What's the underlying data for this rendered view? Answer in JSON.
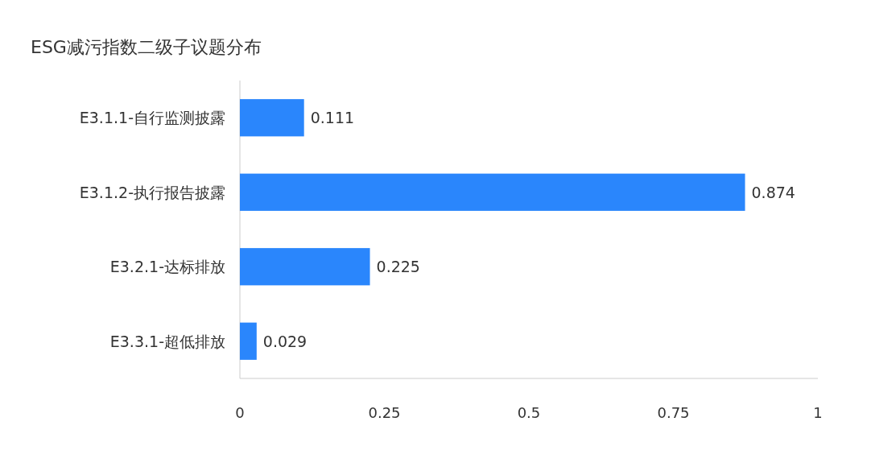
{
  "chart_data": {
    "type": "bar",
    "orientation": "horizontal",
    "title": "ESG减污指数二级子议题分布",
    "categories": [
      "E3.1.1-自行监测披露",
      "E3.1.2-执行报告披露",
      "E3.2.1-达标排放",
      "E3.3.1-超低排放"
    ],
    "values": [
      0.111,
      0.874,
      0.225,
      0.029
    ],
    "color": "#2a86fc",
    "xlim": [
      0,
      1
    ],
    "xticks": [
      0,
      0.25,
      0.5,
      0.75,
      1
    ],
    "data_labels": true
  }
}
